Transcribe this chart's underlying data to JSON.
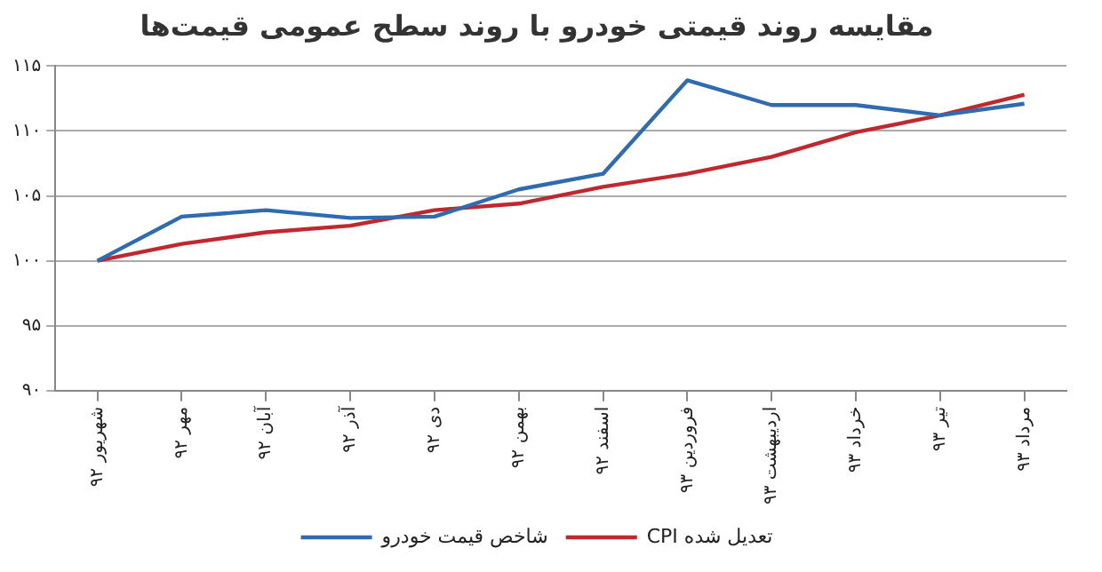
{
  "chart_data": {
    "type": "line",
    "title": "مقایسه روند قیمتی خودرو با روند سطح عمومی قیمت‌ها",
    "categories": [
      "شهریور ۹۲",
      "مهر ۹۲",
      "آبان ۹۲",
      "آذر ۹۲",
      "دی ۹۲",
      "بهمن ۹۲",
      "اسفند ۹۲",
      "فروردین ۹۳",
      "اردیبهشت ۹۳",
      "خرداد ۹۳",
      "تیر ۹۳",
      "مرداد ۹۳"
    ],
    "series": [
      {
        "name": "شاخص قیمت خودرو",
        "color": "#2f6bb0",
        "values": [
          100,
          103.4,
          103.9,
          103.3,
          103.4,
          105.5,
          106.7,
          113.9,
          112,
          112,
          111.2,
          112.1
        ]
      },
      {
        "name": "CPI تعدیل شده",
        "color": "#c0282d",
        "values": [
          100,
          101.3,
          102.2,
          102.7,
          103.9,
          104.4,
          105.7,
          106.7,
          108,
          109.9,
          111.2,
          112.8
        ]
      }
    ],
    "ylim": [
      90,
      115
    ],
    "yticks": [
      {
        "value": 90,
        "label": "۹۰"
      },
      {
        "value": 95,
        "label": "۹۵"
      },
      {
        "value": 100,
        "label": "۱۰۰"
      },
      {
        "value": 105,
        "label": "۱۰۵"
      },
      {
        "value": 110,
        "label": "۱۱۰"
      },
      {
        "value": 115,
        "label": "۱۱۵"
      }
    ],
    "grid": "y",
    "legend": "bottom",
    "marker": "none",
    "line_style": "solid"
  }
}
